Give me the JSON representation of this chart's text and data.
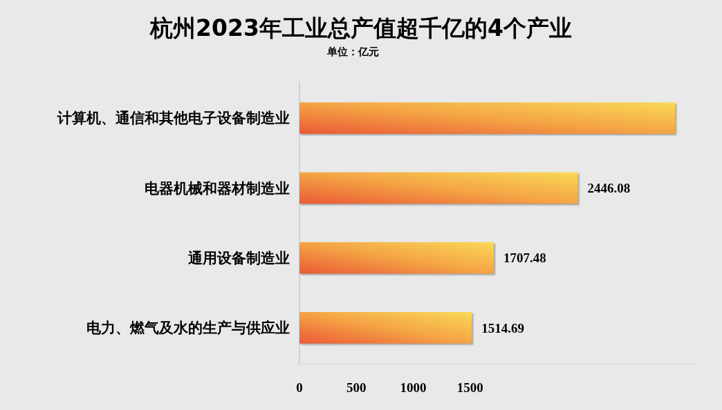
{
  "chart_data": {
    "type": "bar",
    "orientation": "horizontal",
    "title": "杭州2023年工业总产值超千亿的4个产业",
    "subtitle": "单位：亿元",
    "categories": [
      "计算机、通信和其他电子设备制造业",
      "电器机械和器材制造业",
      "通用设备制造业",
      "电力、燃气及水的生产与供应业"
    ],
    "series": [
      {
        "color": "#f4a445",
        "values": [
          3300,
          2446.08,
          1707.48,
          1514.69
        ],
        "value_labels": [
          null,
          "2446.08",
          "1707.48",
          "1514.69"
        ]
      }
    ],
    "xlim": [
      0,
      3500
    ],
    "xticks": [
      0,
      500,
      1000,
      1500
    ],
    "grid": false
  }
}
